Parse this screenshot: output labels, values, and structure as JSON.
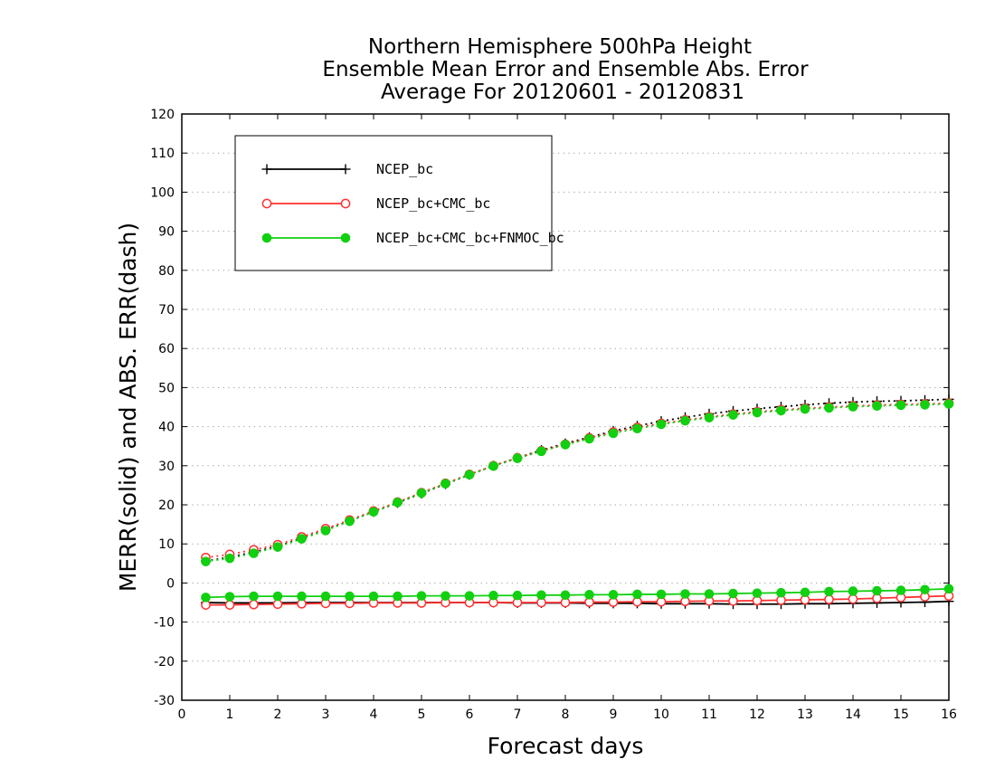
{
  "chart_data": {
    "type": "line",
    "title": [
      "Northern Hemisphere 500hPa Height",
      "Ensemble Mean Error and Ensemble Abs. Error",
      "Average For 20120601 - 20120831"
    ],
    "xlabel": "Forecast days",
    "ylabel": "MERR(solid) and ABS. ERR(dash)",
    "xlim": [
      0,
      16
    ],
    "ylim": [
      -30,
      120
    ],
    "xticks": [
      0,
      1,
      2,
      3,
      4,
      5,
      6,
      7,
      8,
      9,
      10,
      11,
      12,
      13,
      14,
      15,
      16
    ],
    "yticks": [
      -30,
      -20,
      -10,
      0,
      10,
      20,
      30,
      40,
      50,
      60,
      70,
      80,
      90,
      100,
      110,
      120
    ],
    "grid": "horizontal dotted",
    "legend": "top-left",
    "x": [
      0.5,
      1,
      1.5,
      2,
      2.5,
      3,
      3.5,
      4,
      4.5,
      5,
      5.5,
      6,
      6.5,
      7,
      7.5,
      8,
      8.5,
      9,
      9.5,
      10,
      10.5,
      11,
      11.5,
      12,
      12.5,
      13,
      13.5,
      14,
      14.5,
      15,
      15.5,
      16
    ],
    "series": [
      {
        "name": "NCEP_bc",
        "color": "#000000",
        "marker": "plus",
        "abs_err": [
          5.6,
          6.6,
          7.9,
          9.4,
          11.4,
          13.6,
          15.9,
          18.2,
          20.5,
          22.9,
          25.3,
          27.7,
          30.0,
          32.0,
          34.0,
          35.7,
          37.3,
          38.9,
          40.2,
          41.4,
          42.4,
          43.3,
          44.0,
          44.6,
          45.1,
          45.6,
          46.0,
          46.3,
          46.5,
          46.6,
          46.8,
          47.0
        ],
        "mean_err": [
          -5.0,
          -5.1,
          -5.1,
          -5.1,
          -5.0,
          -5.0,
          -5.0,
          -5.0,
          -5.0,
          -5.0,
          -5.0,
          -5.0,
          -5.0,
          -5.1,
          -5.1,
          -5.1,
          -5.2,
          -5.2,
          -5.2,
          -5.3,
          -5.3,
          -5.3,
          -5.4,
          -5.4,
          -5.4,
          -5.3,
          -5.3,
          -5.2,
          -5.1,
          -5.0,
          -4.9,
          -4.7
        ]
      },
      {
        "name": "NCEP_bc+CMC_bc",
        "color": "#ff3030",
        "marker": "open-circle",
        "abs_err": [
          6.5,
          7.3,
          8.5,
          9.8,
          11.8,
          13.9,
          16.1,
          18.4,
          20.7,
          23.1,
          25.5,
          27.8,
          30.0,
          32.0,
          33.8,
          35.5,
          37.1,
          38.6,
          39.8,
          40.8,
          41.7,
          42.5,
          43.2,
          43.8,
          44.3,
          44.7,
          45.0,
          45.3,
          45.5,
          45.7,
          45.8,
          46.0
        ],
        "mean_err": [
          -5.6,
          -5.6,
          -5.5,
          -5.4,
          -5.3,
          -5.2,
          -5.2,
          -5.1,
          -5.1,
          -5.1,
          -5.0,
          -5.0,
          -5.0,
          -5.0,
          -5.0,
          -5.0,
          -4.9,
          -4.9,
          -4.8,
          -4.8,
          -4.7,
          -4.6,
          -4.6,
          -4.5,
          -4.4,
          -4.3,
          -4.2,
          -4.1,
          -3.9,
          -3.7,
          -3.5,
          -3.3
        ]
      },
      {
        "name": "NCEP_bc+CMC_bc+FNMOC_bc",
        "color": "#10d010",
        "marker": "filled-circle",
        "abs_err": [
          5.5,
          6.3,
          7.6,
          9.2,
          11.3,
          13.4,
          15.8,
          18.2,
          20.6,
          23.0,
          25.4,
          27.7,
          29.9,
          31.9,
          33.7,
          35.4,
          36.9,
          38.3,
          39.5,
          40.6,
          41.5,
          42.3,
          43.0,
          43.6,
          44.1,
          44.5,
          44.8,
          45.1,
          45.3,
          45.5,
          45.6,
          45.8
        ],
        "mean_err": [
          -3.7,
          -3.5,
          -3.4,
          -3.4,
          -3.4,
          -3.4,
          -3.4,
          -3.4,
          -3.4,
          -3.3,
          -3.3,
          -3.3,
          -3.2,
          -3.2,
          -3.1,
          -3.1,
          -3.0,
          -3.0,
          -2.9,
          -2.9,
          -2.8,
          -2.8,
          -2.7,
          -2.6,
          -2.5,
          -2.4,
          -2.2,
          -2.1,
          -2.0,
          -1.9,
          -1.7,
          -1.5
        ]
      }
    ]
  }
}
